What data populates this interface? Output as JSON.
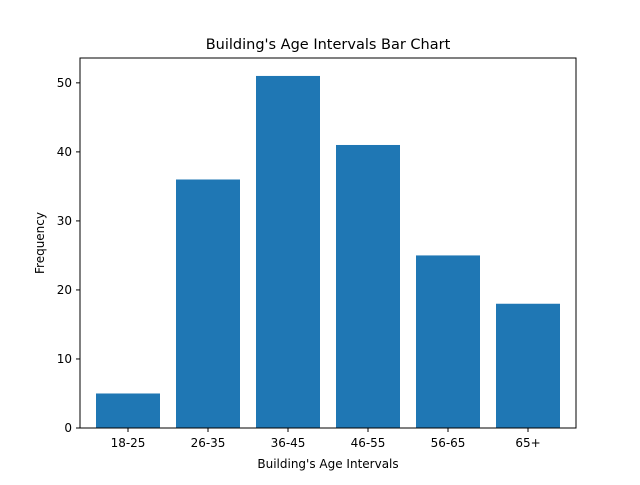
{
  "chart_data": {
    "type": "bar",
    "title": "Building's Age Intervals Bar Chart",
    "xlabel": "Building's Age Intervals",
    "ylabel": "Frequency",
    "categories": [
      "18-25",
      "26-35",
      "36-45",
      "46-55",
      "56-65",
      "65+"
    ],
    "values": [
      5,
      36,
      51,
      41,
      25,
      18
    ],
    "ylim": [
      0,
      53.6
    ],
    "yticks": [
      0,
      10,
      20,
      30,
      40,
      50
    ],
    "bar_color": "#1f77b4",
    "grid": false,
    "legend": "none"
  }
}
